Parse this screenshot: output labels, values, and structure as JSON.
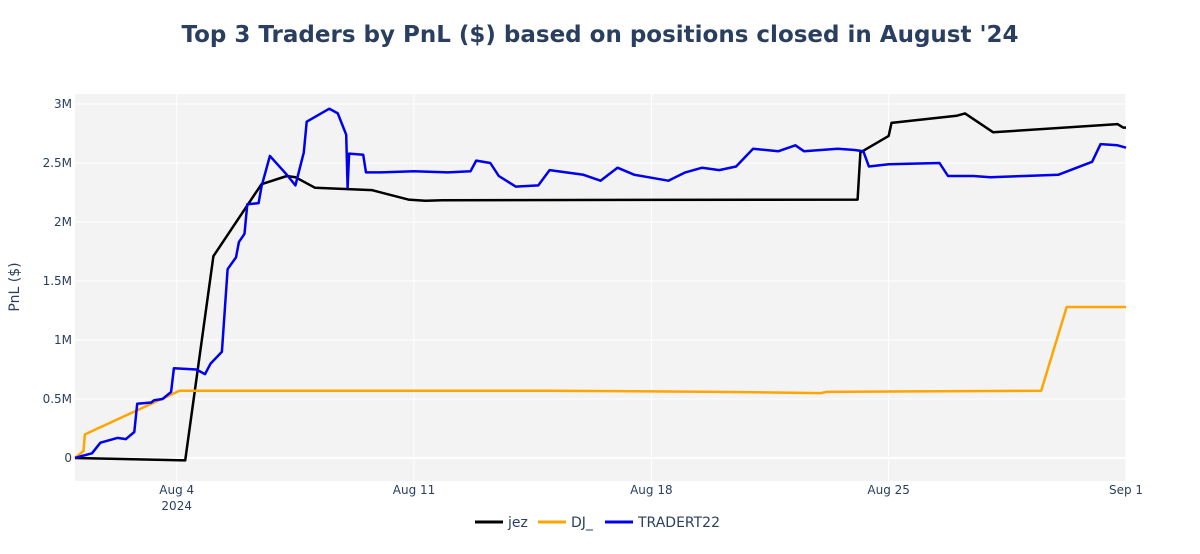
{
  "chart_data": {
    "type": "line",
    "title": "Top 3 Traders by PnL ($) based on positions closed in August '24",
    "xlabel": "",
    "ylabel": "PnL ($)",
    "x_axis": {
      "type": "date",
      "range": [
        "2024-08-01",
        "2024-09-01"
      ],
      "ticks": [
        {
          "date": "2024-08-04",
          "label": "Aug 4",
          "sublabel": "2024"
        },
        {
          "date": "2024-08-11",
          "label": "Aug 11"
        },
        {
          "date": "2024-08-18",
          "label": "Aug 18"
        },
        {
          "date": "2024-08-25",
          "label": "Aug 25"
        },
        {
          "date": "2024-09-01",
          "label": "Sep 1"
        }
      ]
    },
    "y_axis": {
      "range": [
        -200000,
        3100000
      ],
      "ticks": [
        {
          "value": 0,
          "label": "0"
        },
        {
          "value": 500000,
          "label": "0.5M"
        },
        {
          "value": 1000000,
          "label": "1M"
        },
        {
          "value": 1500000,
          "label": "1.5M"
        },
        {
          "value": 2000000,
          "label": "2M"
        },
        {
          "value": 2500000,
          "label": "2.5M"
        },
        {
          "value": 3000000,
          "label": "3M"
        }
      ]
    },
    "grid": true,
    "legend_position": "bottom",
    "series": [
      {
        "name": "jez",
        "color": "#000000",
        "points": [
          [
            "2024-08-01 00:00",
            0
          ],
          [
            "2024-08-04 06:00",
            -20000
          ],
          [
            "2024-08-05 02:00",
            1710000
          ],
          [
            "2024-08-06 12:00",
            2320000
          ],
          [
            "2024-08-07 06:00",
            2390000
          ],
          [
            "2024-08-07 12:00",
            2380000
          ],
          [
            "2024-08-08 02:00",
            2290000
          ],
          [
            "2024-08-09 18:00",
            2270000
          ],
          [
            "2024-08-10 20:00",
            2190000
          ],
          [
            "2024-08-11 08:00",
            2180000
          ],
          [
            "2024-08-11 20:00",
            2185000
          ],
          [
            "2024-08-24 02:00",
            2190000
          ],
          [
            "2024-08-24 04:00",
            2590000
          ],
          [
            "2024-08-25 00:00",
            2730000
          ],
          [
            "2024-08-25 02:00",
            2840000
          ],
          [
            "2024-08-27 00:00",
            2900000
          ],
          [
            "2024-08-27 06:00",
            2920000
          ],
          [
            "2024-08-28 02:00",
            2760000
          ],
          [
            "2024-08-31 18:00",
            2830000
          ],
          [
            "2024-08-31 22:00",
            2800000
          ],
          [
            "2024-09-01 00:00",
            2800000
          ]
        ]
      },
      {
        "name": "DJ_",
        "color": "#ffa500",
        "points": [
          [
            "2024-08-01 00:00",
            0
          ],
          [
            "2024-08-01 06:00",
            60000
          ],
          [
            "2024-08-01 07:00",
            200000
          ],
          [
            "2024-08-04 02:00",
            570000
          ],
          [
            "2024-08-15 00:00",
            570000
          ],
          [
            "2024-08-20 00:00",
            560000
          ],
          [
            "2024-08-23 00:00",
            550000
          ],
          [
            "2024-08-23 04:00",
            560000
          ],
          [
            "2024-08-29 12:00",
            570000
          ],
          [
            "2024-08-30 06:00",
            1280000
          ],
          [
            "2024-09-01 00:00",
            1280000
          ]
        ]
      },
      {
        "name": "TRADERT22",
        "color": "#0000ee",
        "points": [
          [
            "2024-08-01 00:00",
            0
          ],
          [
            "2024-08-01 06:00",
            20000
          ],
          [
            "2024-08-01 12:00",
            40000
          ],
          [
            "2024-08-01 18:00",
            130000
          ],
          [
            "2024-08-02 06:00",
            170000
          ],
          [
            "2024-08-02 12:00",
            160000
          ],
          [
            "2024-08-02 18:00",
            220000
          ],
          [
            "2024-08-02 20:00",
            460000
          ],
          [
            "2024-08-03 06:00",
            470000
          ],
          [
            "2024-08-03 08:00",
            490000
          ],
          [
            "2024-08-03 14:00",
            500000
          ],
          [
            "2024-08-03 20:00",
            560000
          ],
          [
            "2024-08-03 22:00",
            760000
          ],
          [
            "2024-08-04 14:00",
            750000
          ],
          [
            "2024-08-04 20:00",
            710000
          ],
          [
            "2024-08-05 00:00",
            800000
          ],
          [
            "2024-08-05 08:00",
            900000
          ],
          [
            "2024-08-05 12:00",
            1600000
          ],
          [
            "2024-08-05 18:00",
            1700000
          ],
          [
            "2024-08-05 20:00",
            1830000
          ],
          [
            "2024-08-06 00:00",
            1900000
          ],
          [
            "2024-08-06 02:00",
            2150000
          ],
          [
            "2024-08-06 10:00",
            2160000
          ],
          [
            "2024-08-06 12:00",
            2300000
          ],
          [
            "2024-08-06 18:00",
            2560000
          ],
          [
            "2024-08-07 06:00",
            2400000
          ],
          [
            "2024-08-07 12:00",
            2310000
          ],
          [
            "2024-08-07 18:00",
            2590000
          ],
          [
            "2024-08-07 20:00",
            2850000
          ],
          [
            "2024-08-08 12:00",
            2960000
          ],
          [
            "2024-08-08 18:00",
            2920000
          ],
          [
            "2024-08-09 00:00",
            2740000
          ],
          [
            "2024-08-09 01:00",
            2290000
          ],
          [
            "2024-08-09 02:00",
            2580000
          ],
          [
            "2024-08-09 12:00",
            2570000
          ],
          [
            "2024-08-09 14:00",
            2420000
          ],
          [
            "2024-08-10 00:00",
            2420000
          ],
          [
            "2024-08-11 00:00",
            2430000
          ],
          [
            "2024-08-12 00:00",
            2420000
          ],
          [
            "2024-08-12 16:00",
            2430000
          ],
          [
            "2024-08-12 20:00",
            2520000
          ],
          [
            "2024-08-13 06:00",
            2500000
          ],
          [
            "2024-08-13 12:00",
            2390000
          ],
          [
            "2024-08-14 00:00",
            2300000
          ],
          [
            "2024-08-14 16:00",
            2310000
          ],
          [
            "2024-08-15 00:00",
            2440000
          ],
          [
            "2024-08-16 00:00",
            2400000
          ],
          [
            "2024-08-16 12:00",
            2350000
          ],
          [
            "2024-08-17 00:00",
            2460000
          ],
          [
            "2024-08-17 12:00",
            2400000
          ],
          [
            "2024-08-18 12:00",
            2350000
          ],
          [
            "2024-08-19 00:00",
            2420000
          ],
          [
            "2024-08-19 12:00",
            2460000
          ],
          [
            "2024-08-20 00:00",
            2440000
          ],
          [
            "2024-08-20 12:00",
            2470000
          ],
          [
            "2024-08-21 00:00",
            2620000
          ],
          [
            "2024-08-21 18:00",
            2600000
          ],
          [
            "2024-08-22 06:00",
            2650000
          ],
          [
            "2024-08-22 12:00",
            2600000
          ],
          [
            "2024-08-23 12:00",
            2620000
          ],
          [
            "2024-08-24 00:00",
            2610000
          ],
          [
            "2024-08-24 06:00",
            2600000
          ],
          [
            "2024-08-24 10:00",
            2470000
          ],
          [
            "2024-08-25 00:00",
            2490000
          ],
          [
            "2024-08-26 12:00",
            2500000
          ],
          [
            "2024-08-26 18:00",
            2390000
          ],
          [
            "2024-08-27 12:00",
            2390000
          ],
          [
            "2024-08-28 00:00",
            2380000
          ],
          [
            "2024-08-29 00:00",
            2390000
          ],
          [
            "2024-08-30 00:00",
            2400000
          ],
          [
            "2024-08-31 00:00",
            2510000
          ],
          [
            "2024-08-31 06:00",
            2660000
          ],
          [
            "2024-08-31 18:00",
            2650000
          ],
          [
            "2024-09-01 00:00",
            2630000
          ]
        ]
      }
    ]
  }
}
